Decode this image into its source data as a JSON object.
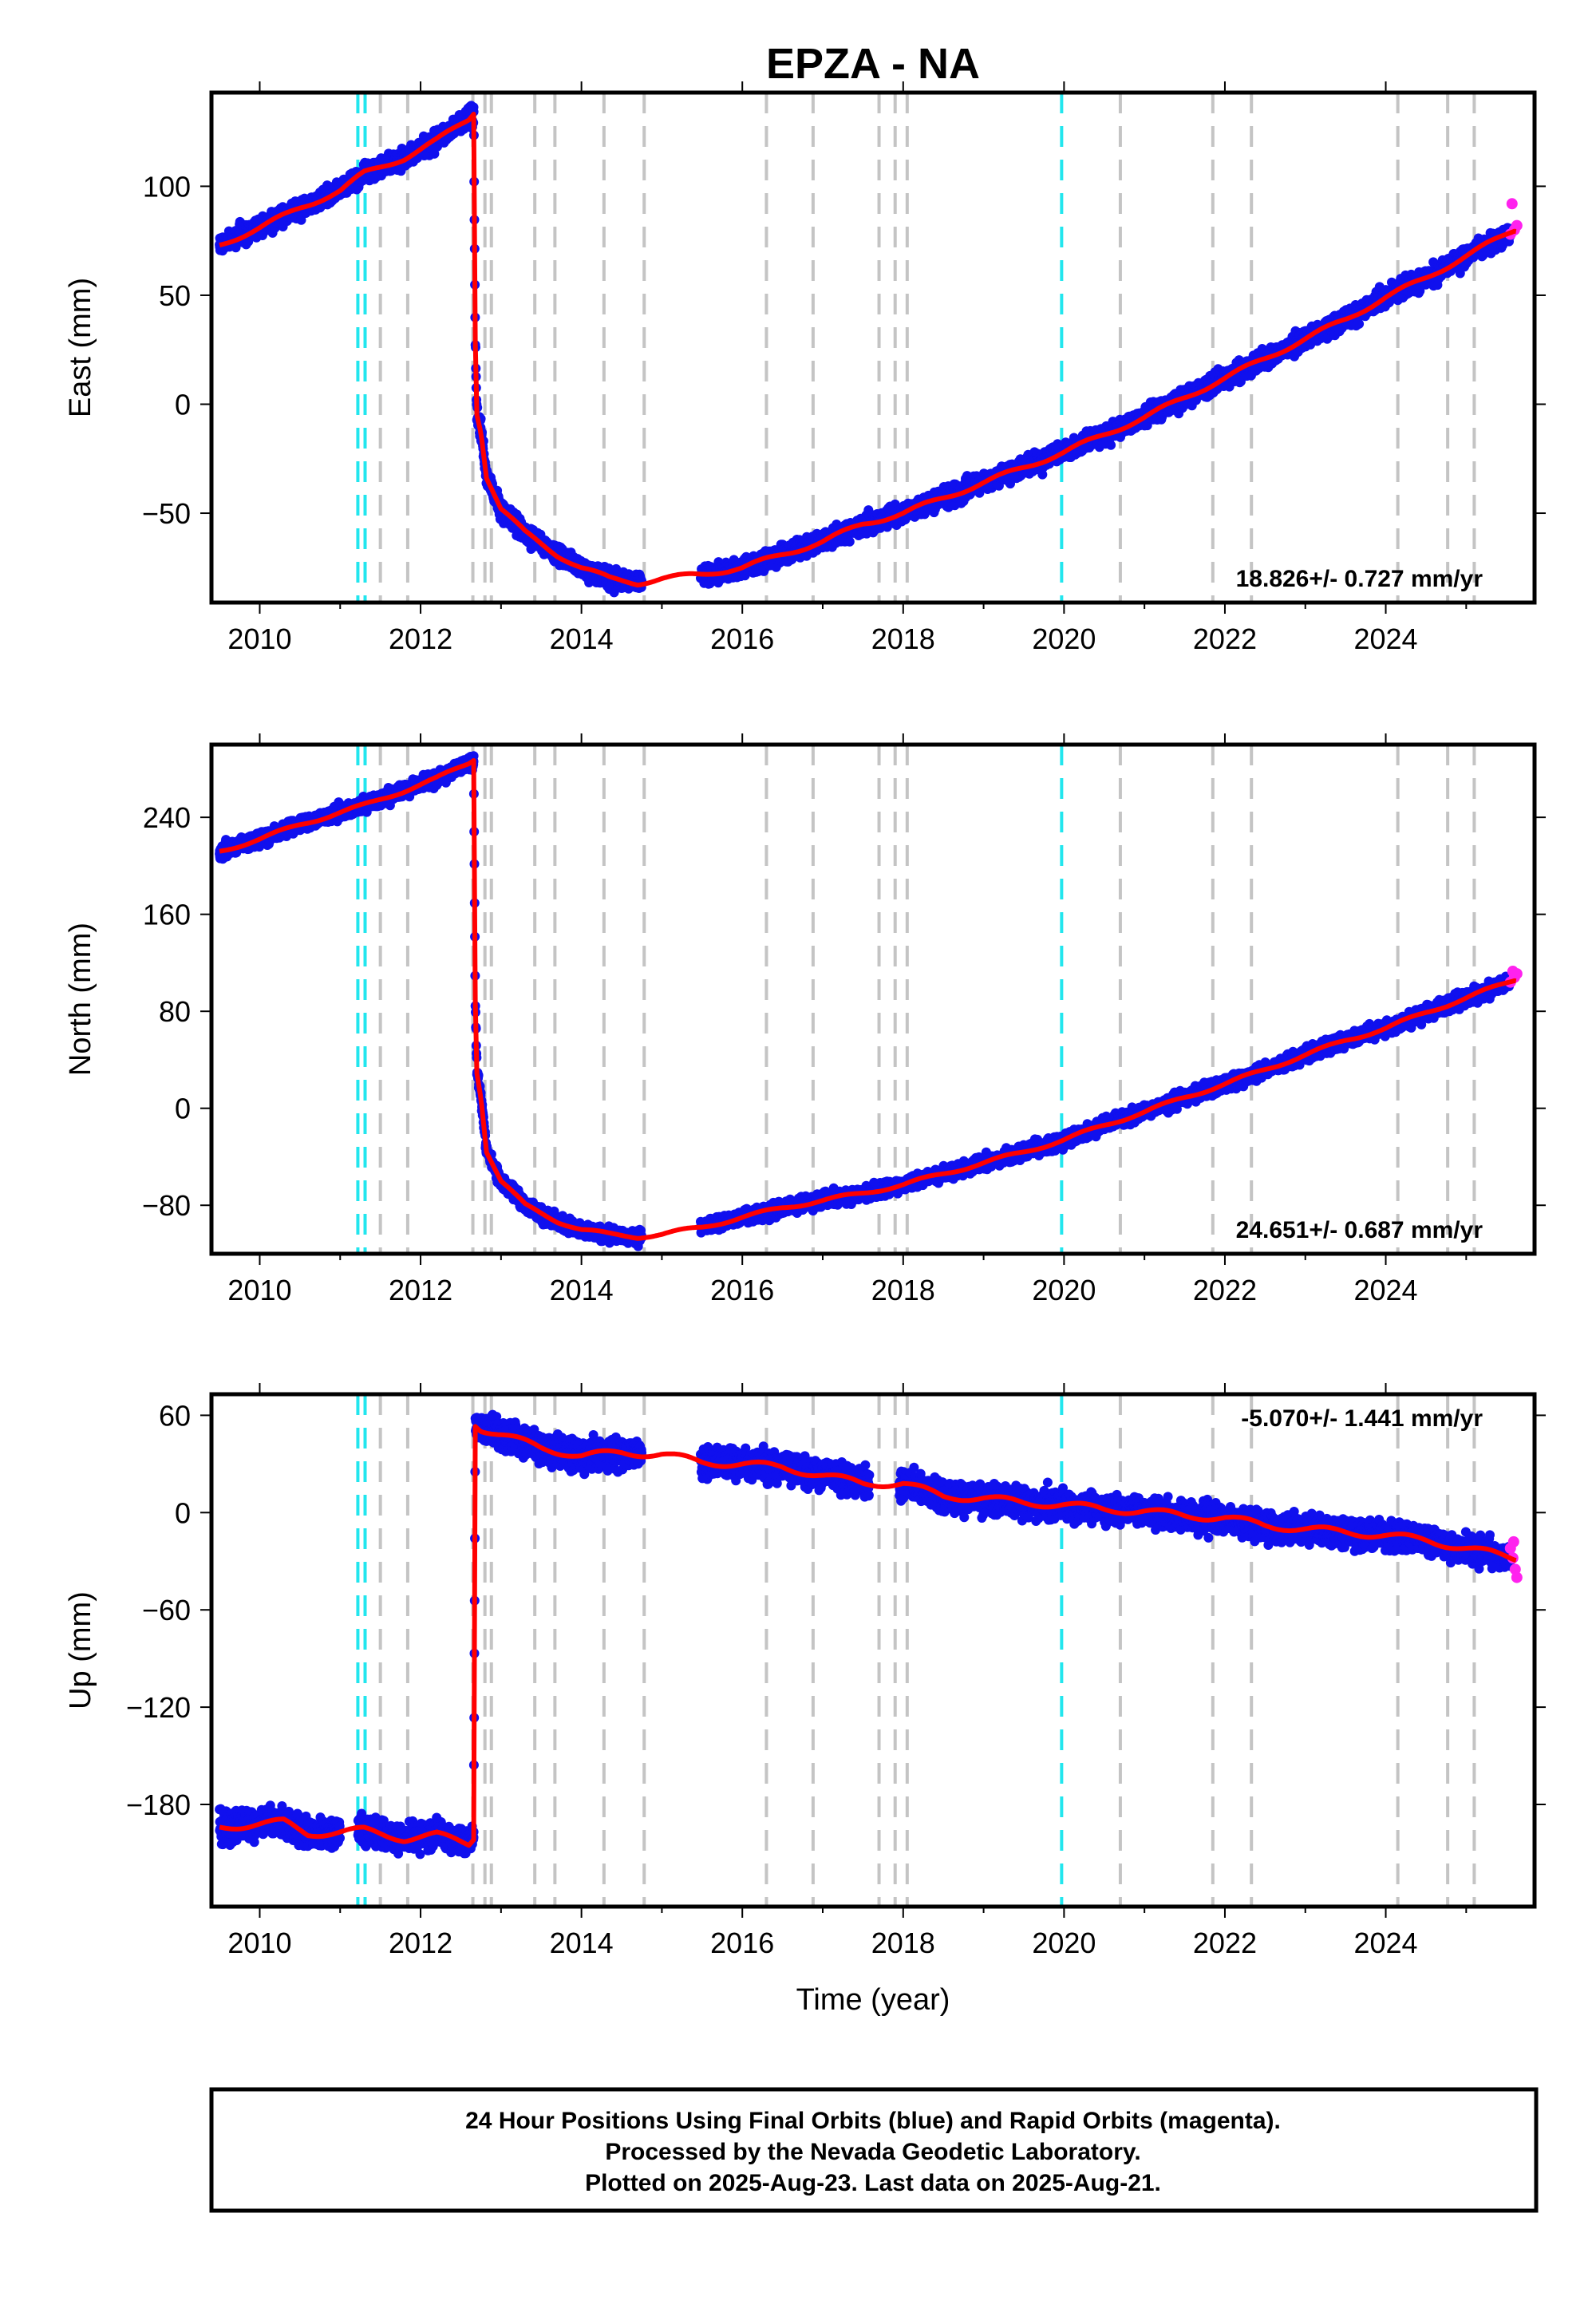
{
  "title": "EPZA - NA",
  "xlabel": "Time (year)",
  "footer": {
    "line1": "24 Hour Positions Using Final Orbits (blue) and Rapid Orbits (magenta).",
    "line2": "Processed by the Nevada Geodetic Laboratory.",
    "line3": "Plotted on 2025-Aug-23. Last data on 2025-Aug-21."
  },
  "colors": {
    "final_orbits": "#1010ee",
    "rapid_orbits": "#ff22ee",
    "model": "#ff0000",
    "equipment_change": "#c4c4c4",
    "earthquake": "#22e6ee"
  },
  "chart_data": [
    {
      "type": "scatter",
      "ylabel": "East (mm)",
      "rate_text": "18.826+/- 0.727 mm/yr",
      "rate_position": "bottom-right",
      "xlim": [
        2009.4,
        2025.85
      ],
      "ylim": [
        -91,
        143
      ],
      "xticks": [
        2010,
        2012,
        2014,
        2016,
        2018,
        2020,
        2022,
        2024
      ],
      "yticks": [
        100,
        50,
        0,
        -50
      ],
      "ytick_labels": [
        "100",
        "50",
        "0",
        "−50"
      ],
      "gray_lines": [
        2011.5,
        2011.84,
        2012.65,
        2012.8,
        2012.88,
        2013.42,
        2013.67,
        2014.28,
        2014.78,
        2016.3,
        2016.88,
        2017.7,
        2017.9,
        2018.05,
        2020.7,
        2021.85,
        2022.33,
        2024.15,
        2024.77,
        2025.1
      ],
      "cyan_lines": [
        2011.22,
        2011.31,
        2019.97
      ],
      "trend": [
        [
          2009.5,
          73
        ],
        [
          2010.0,
          81
        ],
        [
          2010.5,
          90
        ],
        [
          2011.0,
          98
        ],
        [
          2011.3,
          106
        ],
        [
          2011.8,
          113
        ],
        [
          2012.2,
          121
        ],
        [
          2012.6,
          131
        ],
        [
          2012.66,
          134
        ],
        [
          2012.68,
          30
        ],
        [
          2012.7,
          -4
        ],
        [
          2012.75,
          -12
        ],
        [
          2012.82,
          -33
        ],
        [
          2013.0,
          -48
        ],
        [
          2013.3,
          -59
        ],
        [
          2013.7,
          -69
        ],
        [
          2014.0,
          -75
        ],
        [
          2014.35,
          -80
        ],
        [
          2014.7,
          -82
        ],
        [
          2015.0,
          -80
        ],
        [
          2015.5,
          -78
        ],
        [
          2016.0,
          -75
        ],
        [
          2016.5,
          -69
        ],
        [
          2017.0,
          -63
        ],
        [
          2017.5,
          -55
        ],
        [
          2018.0,
          -50
        ],
        [
          2018.5,
          -43
        ],
        [
          2019.0,
          -36
        ],
        [
          2019.5,
          -29
        ],
        [
          2020.0,
          -22
        ],
        [
          2020.5,
          -14
        ],
        [
          2021.0,
          -6
        ],
        [
          2021.5,
          3
        ],
        [
          2022.0,
          12
        ],
        [
          2022.5,
          21
        ],
        [
          2023.0,
          30
        ],
        [
          2023.5,
          39
        ],
        [
          2024.0,
          49
        ],
        [
          2024.5,
          58
        ],
        [
          2025.0,
          68
        ],
        [
          2025.6,
          80
        ]
      ],
      "gaps": [
        [
          2014.75,
          2015.48
        ]
      ],
      "rapid": [
        [
          2025.55,
          78
        ],
        [
          2025.6,
          80
        ],
        [
          2025.63,
          82
        ],
        [
          2025.57,
          92
        ]
      ],
      "noise": 3
    },
    {
      "type": "scatter",
      "ylabel": "North (mm)",
      "rate_text": "24.651+/- 0.687 mm/yr",
      "rate_position": "bottom-right",
      "xlim": [
        2009.4,
        2025.85
      ],
      "ylim": [
        -120,
        300
      ],
      "xticks": [
        2010,
        2012,
        2014,
        2016,
        2018,
        2020,
        2022,
        2024
      ],
      "yticks": [
        240,
        160,
        80,
        0,
        -80
      ],
      "ytick_labels": [
        "240",
        "160",
        "80",
        "0",
        "−80"
      ],
      "gray_lines": [
        2011.5,
        2011.84,
        2012.65,
        2012.8,
        2012.88,
        2013.42,
        2013.67,
        2014.28,
        2014.78,
        2016.3,
        2016.88,
        2017.7,
        2017.9,
        2018.05,
        2020.7,
        2021.85,
        2022.33,
        2024.15,
        2024.77,
        2025.1
      ],
      "cyan_lines": [
        2011.22,
        2011.31,
        2019.97
      ],
      "trend": [
        [
          2009.5,
          212
        ],
        [
          2010.0,
          222
        ],
        [
          2010.5,
          234
        ],
        [
          2011.0,
          244
        ],
        [
          2011.3,
          250
        ],
        [
          2011.8,
          262
        ],
        [
          2012.2,
          272
        ],
        [
          2012.6,
          285
        ],
        [
          2012.66,
          288
        ],
        [
          2012.68,
          90
        ],
        [
          2012.7,
          30
        ],
        [
          2012.75,
          10
        ],
        [
          2012.82,
          -35
        ],
        [
          2013.0,
          -60
        ],
        [
          2013.3,
          -80
        ],
        [
          2013.7,
          -93
        ],
        [
          2014.0,
          -100
        ],
        [
          2014.35,
          -104
        ],
        [
          2014.7,
          -106
        ],
        [
          2015.0,
          -104
        ],
        [
          2015.5,
          -98
        ],
        [
          2016.0,
          -90
        ],
        [
          2016.5,
          -82
        ],
        [
          2017.0,
          -76
        ],
        [
          2017.5,
          -70
        ],
        [
          2018.0,
          -63
        ],
        [
          2018.5,
          -54
        ],
        [
          2019.0,
          -45
        ],
        [
          2019.5,
          -36
        ],
        [
          2020.0,
          -26
        ],
        [
          2020.5,
          -14
        ],
        [
          2021.0,
          -3
        ],
        [
          2021.5,
          9
        ],
        [
          2022.0,
          20
        ],
        [
          2022.5,
          32
        ],
        [
          2023.0,
          44
        ],
        [
          2023.5,
          56
        ],
        [
          2024.0,
          66
        ],
        [
          2024.5,
          79
        ],
        [
          2025.0,
          91
        ],
        [
          2025.6,
          106
        ]
      ],
      "gaps": [
        [
          2014.75,
          2015.48
        ]
      ],
      "rapid": [
        [
          2025.55,
          104
        ],
        [
          2025.6,
          108
        ],
        [
          2025.63,
          111
        ],
        [
          2025.58,
          113
        ]
      ],
      "noise": 4
    },
    {
      "type": "scatter",
      "ylabel": "Up (mm)",
      "rate_text": "-5.070+/- 1.441 mm/yr",
      "rate_position": "top-right",
      "xlim": [
        2009.4,
        2025.85
      ],
      "ylim": [
        -243,
        73
      ],
      "xticks": [
        2010,
        2012,
        2014,
        2016,
        2018,
        2020,
        2022,
        2024
      ],
      "yticks": [
        60,
        0,
        -60,
        -120,
        -180
      ],
      "ytick_labels": [
        "60",
        "0",
        "−60",
        "−120",
        "−180"
      ],
      "gray_lines": [
        2011.5,
        2011.84,
        2012.65,
        2012.8,
        2012.88,
        2013.42,
        2013.67,
        2014.28,
        2014.78,
        2016.3,
        2016.88,
        2017.7,
        2017.9,
        2018.05,
        2020.7,
        2021.85,
        2022.33,
        2024.15,
        2024.77,
        2025.1
      ],
      "cyan_lines": [
        2011.22,
        2011.31,
        2019.97
      ],
      "trend": [
        [
          2009.5,
          -194
        ],
        [
          2010.0,
          -192
        ],
        [
          2010.3,
          -191
        ],
        [
          2010.6,
          -198
        ],
        [
          2011.0,
          -197
        ],
        [
          2011.3,
          -196
        ],
        [
          2011.8,
          -201
        ],
        [
          2012.2,
          -199
        ],
        [
          2012.6,
          -204
        ],
        [
          2012.66,
          -200
        ],
        [
          2012.68,
          55
        ],
        [
          2012.75,
          52
        ],
        [
          2013.0,
          48
        ],
        [
          2013.5,
          40
        ],
        [
          2014.0,
          35
        ],
        [
          2014.5,
          37
        ],
        [
          2015.0,
          36
        ],
        [
          2015.5,
          31
        ],
        [
          2016.0,
          30
        ],
        [
          2016.5,
          28
        ],
        [
          2017.0,
          23
        ],
        [
          2017.5,
          18
        ],
        [
          2018.0,
          18
        ],
        [
          2018.5,
          10
        ],
        [
          2019.0,
          9
        ],
        [
          2019.5,
          6
        ],
        [
          2020.0,
          5
        ],
        [
          2020.5,
          2
        ],
        [
          2021.0,
          1
        ],
        [
          2021.5,
          -2
        ],
        [
          2022.0,
          -3
        ],
        [
          2022.5,
          -8
        ],
        [
          2023.0,
          -10
        ],
        [
          2023.5,
          -12
        ],
        [
          2024.0,
          -14
        ],
        [
          2024.5,
          -17
        ],
        [
          2025.0,
          -22
        ],
        [
          2025.6,
          -28
        ]
      ],
      "gaps": [
        [
          2011.0,
          2011.22
        ],
        [
          2014.75,
          2015.48
        ],
        [
          2017.58,
          2017.95
        ]
      ],
      "rapid": [
        [
          2025.55,
          -22
        ],
        [
          2025.58,
          -28
        ],
        [
          2025.61,
          -35
        ],
        [
          2025.63,
          -40
        ],
        [
          2025.59,
          -18
        ]
      ],
      "noise": 6
    }
  ]
}
